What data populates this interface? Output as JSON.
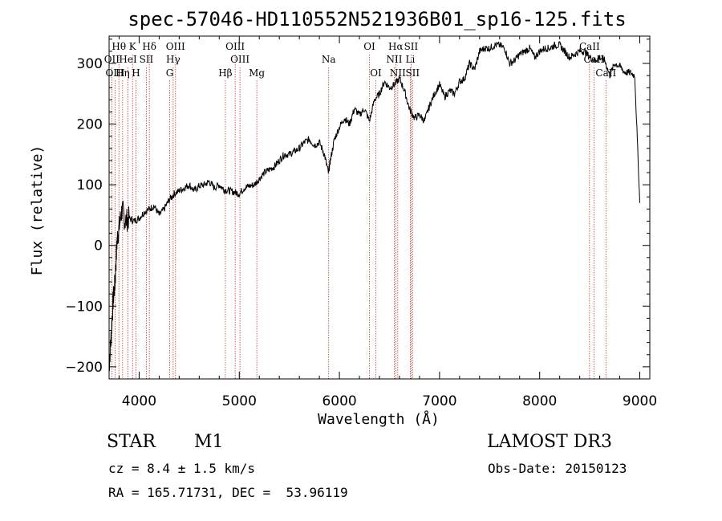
{
  "chart_data": {
    "type": "line",
    "title": "spec-57046-HD110552N521936B01_sp16-125.fits",
    "xlabel": "Wavelength (Å)",
    "ylabel": "Flux (relative)",
    "xlim": [
      3700,
      9100
    ],
    "ylim": [
      -220,
      345
    ],
    "xticks": [
      4000,
      5000,
      6000,
      7000,
      8000,
      9000
    ],
    "yticks": [
      -200,
      -100,
      0,
      100,
      200,
      300
    ],
    "series": [
      {
        "name": "flux",
        "x": [
          3700,
          3720,
          3740,
          3760,
          3780,
          3800,
          3830,
          3860,
          3900,
          3950,
          4000,
          4050,
          4100,
          4150,
          4200,
          4250,
          4300,
          4350,
          4400,
          4450,
          4500,
          4550,
          4600,
          4650,
          4700,
          4750,
          4800,
          4850,
          4900,
          4950,
          5000,
          5050,
          5100,
          5150,
          5200,
          5250,
          5300,
          5350,
          5400,
          5450,
          5500,
          5550,
          5600,
          5650,
          5700,
          5750,
          5800,
          5850,
          5890,
          5910,
          5950,
          6000,
          6050,
          6100,
          6150,
          6200,
          6250,
          6300,
          6350,
          6400,
          6450,
          6500,
          6550,
          6600,
          6650,
          6700,
          6750,
          6800,
          6850,
          6900,
          6950,
          7000,
          7050,
          7100,
          7150,
          7200,
          7250,
          7300,
          7350,
          7400,
          7450,
          7500,
          7550,
          7600,
          7650,
          7700,
          7750,
          7800,
          7850,
          7900,
          7950,
          8000,
          8050,
          8100,
          8150,
          8200,
          8250,
          8300,
          8350,
          8400,
          8450,
          8500,
          8550,
          8600,
          8650,
          8700,
          8750,
          8800,
          8850,
          8900,
          8950,
          9000
        ],
        "values": [
          -200,
          -150,
          -90,
          -60,
          10,
          30,
          60,
          40,
          45,
          40,
          45,
          55,
          60,
          65,
          50,
          60,
          75,
          85,
          90,
          95,
          100,
          90,
          98,
          100,
          105,
          95,
          100,
          92,
          90,
          88,
          85,
          95,
          98,
          100,
          110,
          120,
          125,
          130,
          140,
          150,
          150,
          155,
          160,
          170,
          175,
          165,
          170,
          150,
          120,
          140,
          175,
          195,
          210,
          200,
          225,
          215,
          225,
          205,
          240,
          250,
          270,
          260,
          265,
          275,
          255,
          225,
          210,
          215,
          205,
          230,
          250,
          265,
          245,
          255,
          250,
          270,
          275,
          300,
          290,
          320,
          325,
          325,
          330,
          330,
          325,
          300,
          305,
          315,
          320,
          325,
          310,
          320,
          325,
          325,
          330,
          330,
          320,
          310,
          315,
          320,
          320,
          310,
          305,
          310,
          305,
          280,
          300,
          295,
          285,
          285,
          280,
          70
        ]
      }
    ],
    "spectral_lines": [
      {
        "label": "Hθ",
        "wl": 3798,
        "row": 1
      },
      {
        "label": "K",
        "wl": 3934,
        "row": 1
      },
      {
        "label": "Hδ",
        "wl": 4102,
        "row": 1
      },
      {
        "label": "OIII",
        "wl": 4363,
        "row": 1
      },
      {
        "label": "OIII",
        "wl": 4959,
        "row": 1
      },
      {
        "label": "OI",
        "wl": 6300,
        "row": 1
      },
      {
        "label": "Hα",
        "wl": 6563,
        "row": 1
      },
      {
        "label": "SII",
        "wl": 6716,
        "row": 1
      },
      {
        "label": "CaII",
        "wl": 8498,
        "row": 1
      },
      {
        "label": "OII",
        "wl": 3727,
        "row": 2
      },
      {
        "label": "HeI",
        "wl": 3889,
        "row": 2
      },
      {
        "label": "SII",
        "wl": 4072,
        "row": 2
      },
      {
        "label": "Hγ",
        "wl": 4340,
        "row": 2
      },
      {
        "label": "OIII",
        "wl": 5007,
        "row": 2
      },
      {
        "label": "Na",
        "wl": 5893,
        "row": 2
      },
      {
        "label": "NII",
        "wl": 6548,
        "row": 2
      },
      {
        "label": "Li",
        "wl": 6708,
        "row": 2
      },
      {
        "label": "CaII",
        "wl": 8542,
        "row": 2
      },
      {
        "label": "OIII",
        "wl": 3760,
        "row": 3
      },
      {
        "label": "Hη",
        "wl": 3835,
        "row": 3
      },
      {
        "label": "H",
        "wl": 3968,
        "row": 3
      },
      {
        "label": "G",
        "wl": 4305,
        "row": 3
      },
      {
        "label": "Hβ",
        "wl": 4861,
        "row": 3
      },
      {
        "label": "Mg",
        "wl": 5175,
        "row": 3
      },
      {
        "label": "OI",
        "wl": 6364,
        "row": 3
      },
      {
        "label": "NII",
        "wl": 6583,
        "row": 3
      },
      {
        "label": "SII",
        "wl": 6731,
        "row": 3
      },
      {
        "label": "CaII",
        "wl": 8662,
        "row": 3
      }
    ]
  },
  "info": {
    "class": "STAR",
    "subclass": "M1",
    "survey": "LAMOST DR3",
    "cz": "cz = 8.4 ± 1.5 km/s",
    "obsdate": "Obs-Date: 20150123",
    "radec": "RA = 165.71731, DEC =  53.96119"
  }
}
